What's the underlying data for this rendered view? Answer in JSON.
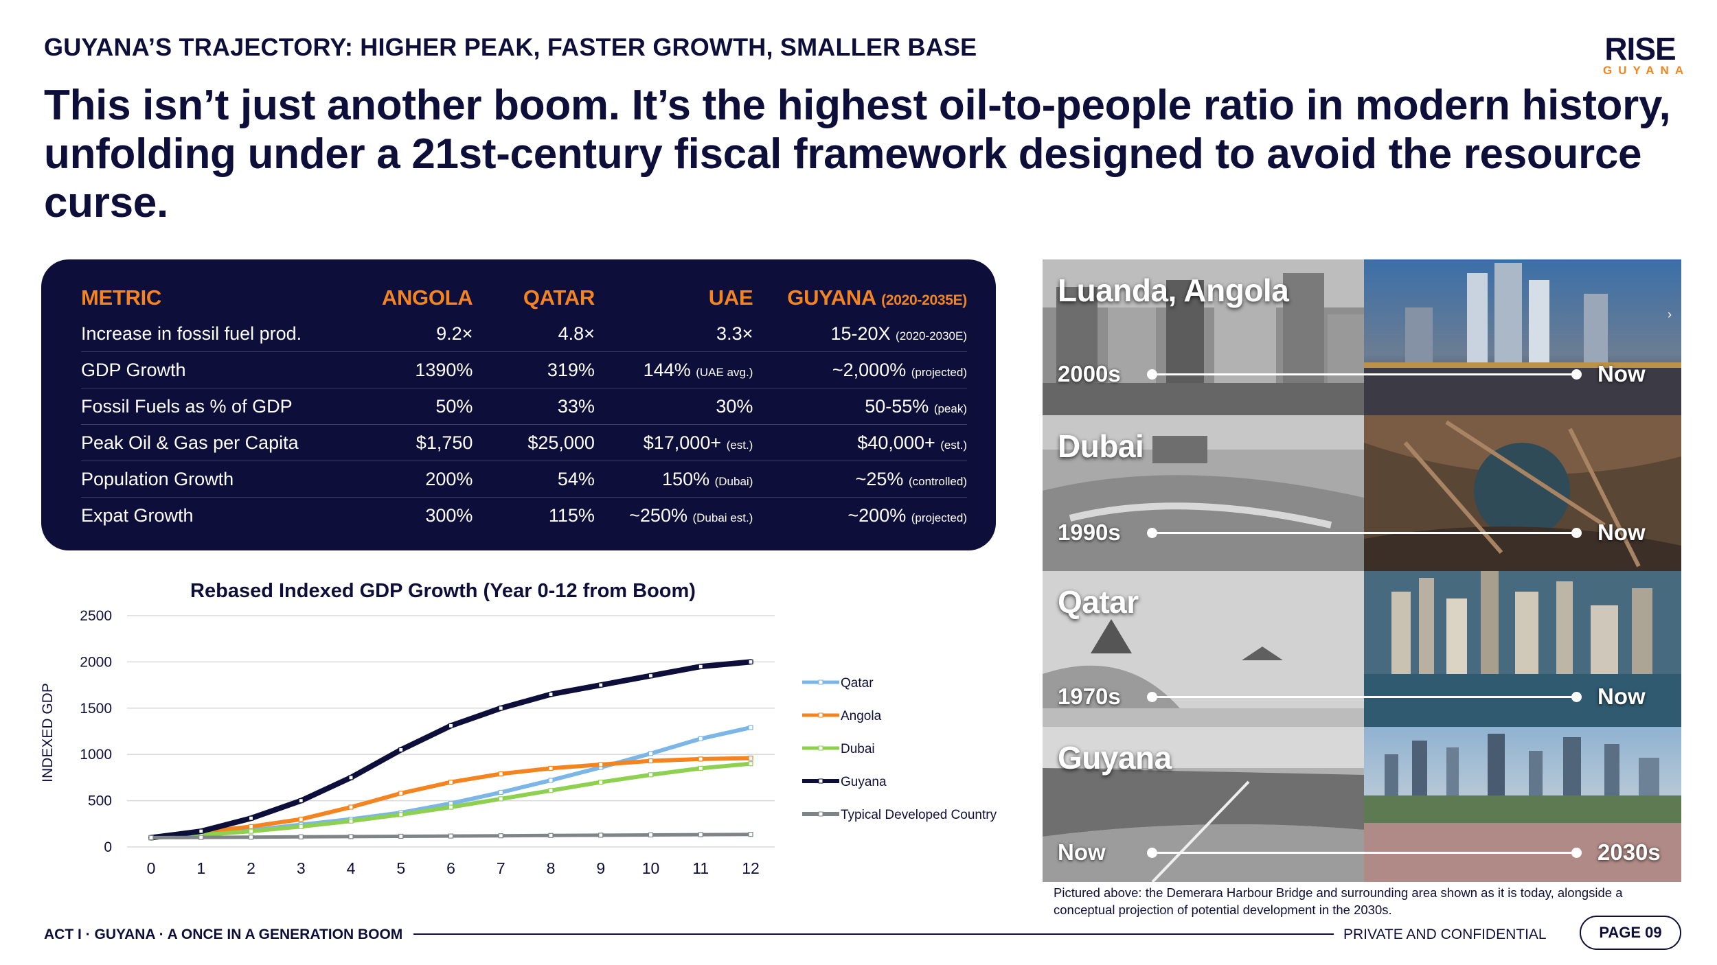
{
  "header": {
    "eyebrow": "GUYANA’S TRAJECTORY: HIGHER PEAK, FASTER GROWTH, SMALLER BASE",
    "logo_word": "RISE",
    "logo_sub": "GUYANA",
    "headline": "This isn’t just another boom. It’s the highest oil-to-people ratio in modern history, unfolding under a 21st-century fiscal framework designed to avoid the resource curse."
  },
  "table": {
    "headers": {
      "metric": "METRIC",
      "angola": "ANGOLA",
      "qatar": "QATAR",
      "uae": "UAE",
      "guyana": "GUYANA",
      "guyana_note": "(2020-2035E)"
    },
    "rows": [
      {
        "metric": "Increase in fossil fuel prod.",
        "angola": "9.2×",
        "qatar": "4.8×",
        "uae": "3.3×",
        "uae_note": "",
        "guyana": "15-20X",
        "guyana_note": "(2020-2030E)"
      },
      {
        "metric": "GDP Growth",
        "angola": "1390%",
        "qatar": "319%",
        "uae": "144%",
        "uae_note": "(UAE avg.)",
        "guyana": "~2,000%",
        "guyana_note": "(projected)"
      },
      {
        "metric": "Fossil Fuels as % of GDP",
        "angola": "50%",
        "qatar": "33%",
        "uae": "30%",
        "uae_note": "",
        "guyana": "50-55%",
        "guyana_note": "(peak)"
      },
      {
        "metric": "Peak Oil & Gas per Capita",
        "angola": "$1,750",
        "qatar": "$25,000",
        "uae": "$17,000+",
        "uae_note": "(est.)",
        "guyana": "$40,000+",
        "guyana_note": "(est.)"
      },
      {
        "metric": "Population Growth",
        "angola": "200%",
        "qatar": "54%",
        "uae": "150%",
        "uae_note": "(Dubai)",
        "guyana": "~25%",
        "guyana_note": "(controlled)"
      },
      {
        "metric": "Expat Growth",
        "angola": "300%",
        "qatar": "115%",
        "uae": "~250%",
        "uae_note": "(Dubai est.)",
        "guyana": "~200%",
        "guyana_note": "(projected)"
      }
    ]
  },
  "chart_data": {
    "type": "line",
    "title": "Rebased Indexed GDP Growth (Year 0-12 from Boom)",
    "xlabel": "",
    "ylabel": "INDEXED GDP",
    "x": [
      0,
      1,
      2,
      3,
      4,
      5,
      6,
      7,
      8,
      9,
      10,
      11,
      12
    ],
    "ylim": [
      0,
      2500
    ],
    "yticks": [
      0,
      500,
      1000,
      1500,
      2000,
      2500
    ],
    "legend_position": "right",
    "grid": true,
    "series": [
      {
        "name": "Qatar",
        "color": "#7cb6e6",
        "marker": "x",
        "values": [
          100,
          130,
          180,
          240,
          300,
          370,
          470,
          590,
          720,
          860,
          1010,
          1170,
          1290
        ]
      },
      {
        "name": "Angola",
        "color": "#f4841f",
        "marker": "circle",
        "values": [
          100,
          160,
          220,
          300,
          430,
          580,
          700,
          790,
          850,
          890,
          930,
          950,
          960
        ]
      },
      {
        "name": "Dubai",
        "color": "#8ed04f",
        "marker": "triangle",
        "values": [
          100,
          130,
          170,
          220,
          280,
          350,
          430,
          520,
          610,
          700,
          780,
          850,
          900
        ]
      },
      {
        "name": "Guyana",
        "color": "#0d0f3a",
        "marker": "square",
        "values": [
          100,
          170,
          310,
          500,
          750,
          1050,
          1310,
          1500,
          1650,
          1750,
          1850,
          1950,
          2000
        ]
      },
      {
        "name": "Typical Developed Country",
        "color": "#7f8586",
        "marker": "circle",
        "values": [
          100,
          103,
          106,
          109,
          112,
          115,
          118,
          121,
          124,
          127,
          130,
          133,
          136
        ]
      }
    ]
  },
  "photos": [
    {
      "city": "Luanda, Angola",
      "from": "2000s",
      "to": "Now"
    },
    {
      "city": "Dubai",
      "from": "1990s",
      "to": "Now"
    },
    {
      "city": "Qatar",
      "from": "1970s",
      "to": "Now"
    },
    {
      "city": "Guyana",
      "from": "Now",
      "to": "2030s"
    }
  ],
  "caption": "Pictured above: the Demerara Harbour Bridge and surrounding area shown as it is today, alongside a conceptual projection of potential development in the 2030s.",
  "footer": {
    "left": "ACT I · GUYANA · A ONCE IN A GENERATION BOOM",
    "confidential": "PRIVATE AND CONFIDENTIAL",
    "page": "PAGE 09"
  },
  "colors": {
    "navy": "#0d0f3a",
    "orange": "#f4841f"
  }
}
